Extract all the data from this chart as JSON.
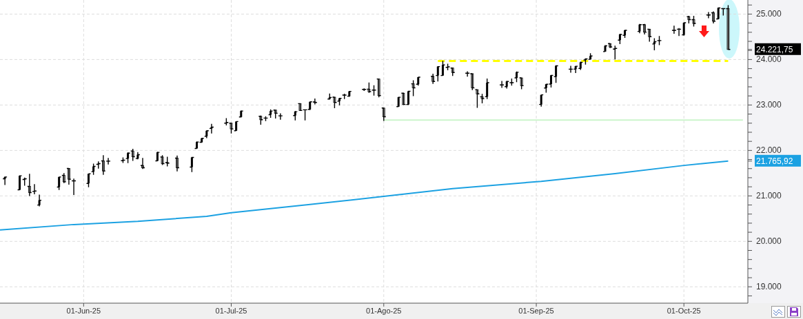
{
  "chart_data": {
    "type": "candlestick",
    "color": "#000000",
    "x": [
      "2025-05-16",
      "2025-05-19",
      "2025-05-20",
      "2025-05-21",
      "2025-05-22",
      "2025-05-23",
      "2025-05-27",
      "2025-05-28",
      "2025-05-29",
      "2025-05-30",
      "2025-06-02",
      "2025-06-03",
      "2025-06-04",
      "2025-06-05",
      "2025-06-06",
      "2025-06-09",
      "2025-06-10",
      "2025-06-11",
      "2025-06-12",
      "2025-06-13",
      "2025-06-16",
      "2025-06-17",
      "2025-06-18",
      "2025-06-20",
      "2025-06-23",
      "2025-06-24",
      "2025-06-25",
      "2025-06-26",
      "2025-06-27",
      "2025-06-30",
      "2025-07-01",
      "2025-07-02",
      "2025-07-03",
      "2025-07-07",
      "2025-07-08",
      "2025-07-09",
      "2025-07-10",
      "2025-07-11",
      "2025-07-14",
      "2025-07-15",
      "2025-07-16",
      "2025-07-17",
      "2025-07-18",
      "2025-07-21",
      "2025-07-22",
      "2025-07-23",
      "2025-07-24",
      "2025-07-25",
      "2025-07-28",
      "2025-07-29",
      "2025-07-30",
      "2025-07-31",
      "2025-08-01",
      "2025-08-04",
      "2025-08-05",
      "2025-08-06",
      "2025-08-07",
      "2025-08-08",
      "2025-08-11",
      "2025-08-12",
      "2025-08-13",
      "2025-08-14",
      "2025-08-15",
      "2025-08-18",
      "2025-08-19",
      "2025-08-20",
      "2025-08-21",
      "2025-08-22",
      "2025-08-25",
      "2025-08-26",
      "2025-08-27",
      "2025-08-28",
      "2025-08-29",
      "2025-09-02",
      "2025-09-03",
      "2025-09-04",
      "2025-09-05",
      "2025-09-08",
      "2025-09-09",
      "2025-09-10",
      "2025-09-11",
      "2025-09-12",
      "2025-09-15",
      "2025-09-16",
      "2025-09-17",
      "2025-09-18",
      "2025-09-19",
      "2025-09-22",
      "2025-09-23",
      "2025-09-24",
      "2025-09-25",
      "2025-09-26",
      "2025-09-29",
      "2025-09-30",
      "2025-10-01",
      "2025-10-02",
      "2025-10-03",
      "2025-10-06",
      "2025-10-07",
      "2025-10-08",
      "2025-10-09",
      "2025-10-10"
    ],
    "ohlc": [
      [
        21376,
        21426,
        21239,
        21416
      ],
      [
        21133,
        21452,
        21133,
        21442
      ],
      [
        21360,
        21401,
        21224,
        21376
      ],
      [
        21209,
        21487,
        20996,
        21072
      ],
      [
        21097,
        21259,
        21037,
        21107
      ],
      [
        20799,
        21027,
        20769,
        20905
      ],
      [
        21194,
        21421,
        21128,
        21416
      ],
      [
        21452,
        21502,
        21280,
        21310
      ],
      [
        21604,
        21609,
        21249,
        21366
      ],
      [
        21330,
        21381,
        21021,
        21330
      ],
      [
        21275,
        21487,
        21189,
        21487
      ],
      [
        21533,
        21710,
        21462,
        21649
      ],
      [
        21695,
        21760,
        21598,
        21710
      ],
      [
        21770,
        21897,
        21462,
        21548
      ],
      [
        21765,
        21836,
        21690,
        21765
      ],
      [
        21775,
        21846,
        21725,
        21786
      ],
      [
        21821,
        21958,
        21720,
        21942
      ],
      [
        21988,
        22034,
        21770,
        21862
      ],
      [
        21821,
        21963,
        21806,
        21907
      ],
      [
        21669,
        21836,
        21593,
        21619
      ],
      [
        21770,
        21973,
        21770,
        21958
      ],
      [
        21856,
        21897,
        21680,
        21710
      ],
      [
        21735,
        21861,
        21649,
        21720
      ],
      [
        21831,
        21887,
        21538,
        21619
      ],
      [
        21634,
        21856,
        21523,
        21846
      ],
      [
        22044,
        22200,
        22044,
        22185
      ],
      [
        22180,
        22276,
        22170,
        22266
      ],
      [
        22312,
        22443,
        22271,
        22433
      ],
      [
        22484,
        22585,
        22373,
        22514
      ],
      [
        22600,
        22712,
        22550,
        22615
      ],
      [
        22600,
        22610,
        22373,
        22474
      ],
      [
        22433,
        22636,
        22433,
        22636
      ],
      [
        22737,
        22879,
        22727,
        22868
      ],
      [
        22752,
        22767,
        22565,
        22676
      ],
      [
        22712,
        22752,
        22646,
        22712
      ],
      [
        22787,
        22904,
        22717,
        22868
      ],
      [
        22889,
        22889,
        22701,
        22818
      ],
      [
        22762,
        22818,
        22676,
        22762
      ],
      [
        22767,
        22868,
        22661,
        22853
      ],
      [
        23030,
        23040,
        22868,
        22879
      ],
      [
        22894,
        22904,
        22661,
        22894
      ],
      [
        22904,
        23071,
        22889,
        23071
      ],
      [
        23066,
        23142,
        23015,
        23056
      ],
      [
        23132,
        23253,
        23121,
        23167
      ],
      [
        23172,
        23172,
        22929,
        23056
      ],
      [
        23086,
        23157,
        22990,
        23147
      ],
      [
        23218,
        23248,
        23132,
        23218
      ],
      [
        23193,
        23309,
        23182,
        23299
      ],
      [
        23344,
        23364,
        23309,
        23344
      ],
      [
        23349,
        23496,
        23268,
        23293
      ],
      [
        23329,
        23435,
        23207,
        23329
      ],
      [
        23572,
        23572,
        23167,
        23207
      ],
      [
        22933,
        22933,
        22648,
        22741
      ],
      [
        22964,
        23182,
        22964,
        23171
      ],
      [
        23259,
        23270,
        23000,
        23011
      ],
      [
        23011,
        23311,
        23000,
        23301
      ],
      [
        23466,
        23544,
        23197,
        23378
      ],
      [
        23456,
        23617,
        23425,
        23612
      ],
      [
        23632,
        23689,
        23466,
        23518
      ],
      [
        23648,
        23855,
        23518,
        23845
      ],
      [
        23648,
        23974,
        23648,
        23881
      ],
      [
        23829,
        23907,
        23762,
        23839
      ],
      [
        23814,
        23819,
        23637,
        23715
      ],
      [
        23700,
        23741,
        23622,
        23700
      ],
      [
        23689,
        23689,
        23327,
        23378
      ],
      [
        23337,
        23337,
        22938,
        23244
      ],
      [
        23182,
        23244,
        23037,
        23140
      ],
      [
        23182,
        23580,
        23130,
        23492
      ],
      [
        23441,
        23529,
        23378,
        23441
      ],
      [
        23404,
        23534,
        23363,
        23518
      ],
      [
        23492,
        23580,
        23425,
        23492
      ],
      [
        23596,
        23736,
        23503,
        23720
      ],
      [
        23596,
        23596,
        23347,
        23425
      ],
      [
        23011,
        23223,
        22964,
        23223
      ],
      [
        23373,
        23466,
        23270,
        23456
      ],
      [
        23461,
        23662,
        23385,
        23652
      ],
      [
        23622,
        23873,
        23486,
        23863
      ],
      [
        23788,
        23863,
        23712,
        23788
      ],
      [
        23788,
        23863,
        23702,
        23853
      ],
      [
        23803,
        23954,
        23773,
        23938
      ],
      [
        23989,
        24024,
        23888,
        24014
      ],
      [
        24004,
        24140,
        24004,
        24079
      ],
      [
        24175,
        24316,
        24175,
        24301
      ],
      [
        24351,
        24351,
        24251,
        24276
      ],
      [
        24230,
        24306,
        24004,
        24245
      ],
      [
        24427,
        24568,
        24341,
        24553
      ],
      [
        24532,
        24653,
        24477,
        24643
      ],
      [
        24618,
        24784,
        24578,
        24769
      ],
      [
        24769,
        24784,
        24553,
        24603
      ],
      [
        24668,
        24668,
        24392,
        24502
      ],
      [
        24341,
        24467,
        24205,
        24392
      ],
      [
        24417,
        24517,
        24316,
        24417
      ],
      [
        24643,
        24744,
        24568,
        24643
      ],
      [
        24668,
        24693,
        24517,
        24668
      ],
      [
        24542,
        24819,
        24527,
        24809
      ],
      [
        24945,
        24960,
        24794,
        24879
      ],
      [
        24879,
        24960,
        24728,
        24794
      ],
      [
        24980,
        25045,
        24909,
        24980
      ],
      [
        25030,
        25060,
        24794,
        24844
      ],
      [
        24894,
        25146,
        24884,
        25136
      ],
      [
        25121,
        25131,
        24970,
        25121
      ],
      [
        25121,
        25196,
        24221.75,
        24221.75
      ]
    ],
    "series": [
      {
        "type": "line",
        "color": "#1ba1e2",
        "line_style": "solid",
        "x": [
          "2025-05-15",
          "2025-05-30",
          "2025-06-12",
          "2025-06-26",
          "2025-07-01",
          "2025-07-17",
          "2025-08-01",
          "2025-08-15",
          "2025-09-02",
          "2025-09-17",
          "2025-10-01",
          "2025-10-10"
        ],
        "values": [
          20250,
          20370,
          20440,
          20550,
          20630,
          20810,
          20990,
          21160,
          21320,
          21490,
          21670,
          21765.92
        ]
      },
      {
        "type": "line",
        "color": "#ffff00",
        "line_style": "dashed",
        "x": [
          "2025-08-12",
          "2025-10-10"
        ],
        "values": [
          23970,
          23970
        ]
      },
      {
        "type": "line",
        "color": "#ccf5cc",
        "line_style": "solid",
        "x": [
          "2025-08-01",
          "2025-10-13"
        ],
        "values": [
          22670,
          22670
        ]
      }
    ],
    "xlim": [
      "2025-05-15",
      "2025-10-14"
    ],
    "xticks": [
      {
        "value": "2025-06-01",
        "label": "01-Jun-25"
      },
      {
        "value": "2025-07-01",
        "label": "01-Jul-25"
      },
      {
        "value": "2025-08-01",
        "label": "01-Ago-25"
      },
      {
        "value": "2025-09-01",
        "label": "01-Sep-25"
      },
      {
        "value": "2025-10-01",
        "label": "01-Oct-25"
      }
    ],
    "ylim": [
      18640,
      25310
    ],
    "yticks": [
      {
        "value": 18800,
        "label": null
      },
      {
        "value": 19000,
        "label": "19.000"
      },
      {
        "value": 19200,
        "label": null
      },
      {
        "value": 19400,
        "label": null
      },
      {
        "value": 19600,
        "label": null
      },
      {
        "value": 19800,
        "label": null
      },
      {
        "value": 20000,
        "label": "20.000"
      },
      {
        "value": 20200,
        "label": null
      },
      {
        "value": 20400,
        "label": null
      },
      {
        "value": 20600,
        "label": null
      },
      {
        "value": 20800,
        "label": null
      },
      {
        "value": 21000,
        "label": "21.000"
      },
      {
        "value": 21200,
        "label": null
      },
      {
        "value": 21400,
        "label": null
      },
      {
        "value": 21600,
        "label": null
      },
      {
        "value": 21765.92,
        "label": "21.765,92"
      },
      {
        "value": 21800,
        "label": null
      },
      {
        "value": 22000,
        "label": "22.000"
      },
      {
        "value": 22200,
        "label": null
      },
      {
        "value": 22400,
        "label": null
      },
      {
        "value": 22600,
        "label": null
      },
      {
        "value": 22800,
        "label": null
      },
      {
        "value": 23000,
        "label": "23.000"
      },
      {
        "value": 23200,
        "label": null
      },
      {
        "value": 23400,
        "label": null
      },
      {
        "value": 23600,
        "label": null
      },
      {
        "value": 23800,
        "label": null
      },
      {
        "value": 24000,
        "label": "24.000"
      },
      {
        "value": 24200,
        "label": null
      },
      {
        "value": 24221.75,
        "label": "24.221,75"
      },
      {
        "value": 24400,
        "label": null
      },
      {
        "value": 24600,
        "label": null
      },
      {
        "value": 24800,
        "label": null
      },
      {
        "value": 25000,
        "label": "25.000"
      },
      {
        "value": 25200,
        "label": null
      }
    ],
    "grid": true
  }
}
